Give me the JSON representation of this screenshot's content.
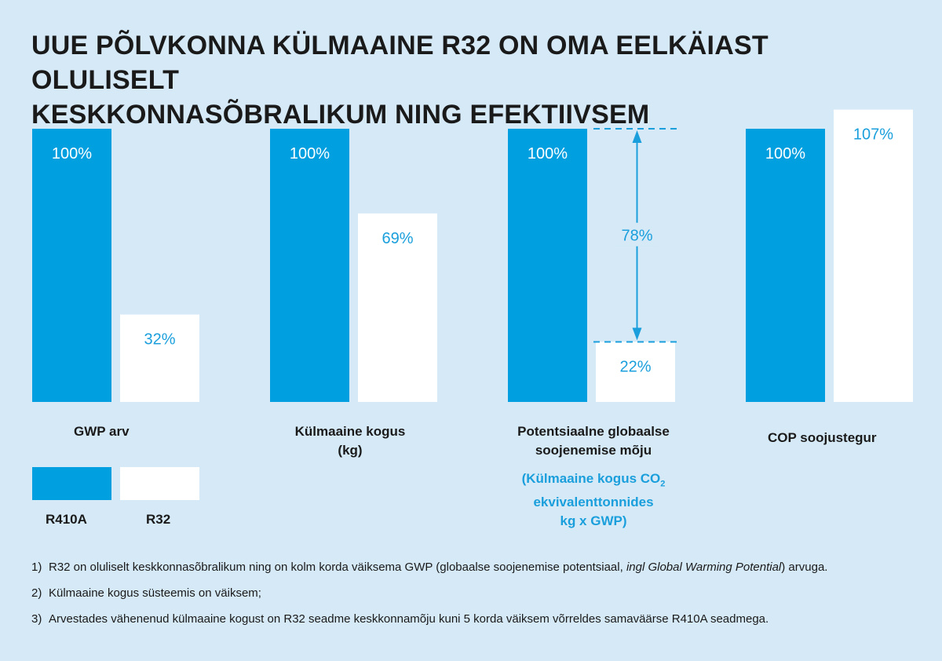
{
  "title_line1": "UUE PÕLVKONNA KÜLMAAINE R32 ON OMA EELKÄIAST OLULISELT",
  "title_line2": "KESKKONNASÕBRALIKUM NING EFEKTIIVSEM",
  "colors": {
    "r410a": "#009fe0",
    "r32": "#ffffff",
    "accent_text": "#1a9fdc",
    "background": "#d5e9f7"
  },
  "chart_data": {
    "type": "bar",
    "categories": [
      "GWP arv",
      "Külmaaine kogus (kg)",
      "Potentsiaalne globaalse soojenemise mõju",
      "COP soojustegur"
    ],
    "series": [
      {
        "name": "R410A",
        "values": [
          100,
          100,
          100,
          100
        ],
        "labels": [
          "100%",
          "100%",
          "100%",
          "100%"
        ]
      },
      {
        "name": "R32",
        "values": [
          32,
          69,
          22,
          107
        ],
        "labels": [
          "32%",
          "69%",
          "22%",
          "107%"
        ]
      }
    ],
    "annotation": {
      "category_index": 2,
      "text": "78%"
    },
    "grid": false,
    "legend_position": "bottom-left"
  },
  "category_labels": [
    {
      "line1": "GWP arv",
      "line2": ""
    },
    {
      "line1": "Külmaaine kogus",
      "line2": "(kg)"
    },
    {
      "line1": "Potentsiaalne globaalse",
      "line2": "soojenemise mõju"
    },
    {
      "line1": "COP soojustegur",
      "line2": ""
    }
  ],
  "category_note": {
    "line1": "(Külmaaine kogus CO",
    "line1_sub": "2",
    "line2": "ekvivalenttonnides",
    "line3": "kg x GWP)"
  },
  "legend": {
    "r410a": "R410A",
    "r32": "R32"
  },
  "footnotes": [
    {
      "num": "1)",
      "text_before": "R32 on oluliselt keskkonnasõbralikum ning on kolm korda väiksema GWP (globaalse soojenemise potentsiaal, ",
      "text_italic": "ingl Global Warming Potential",
      "text_after": ") arvuga."
    },
    {
      "num": "2)",
      "text_before": "Külmaaine kogus süsteemis on väiksem;",
      "text_italic": "",
      "text_after": ""
    },
    {
      "num": "3)",
      "text_before": "Arvestades vähenenud külmaaine kogust on R32 seadme keskkonnamõju kuni 5 korda väiksem võrreldes samaväärse R410A seadmega.",
      "text_italic": "",
      "text_after": ""
    }
  ]
}
